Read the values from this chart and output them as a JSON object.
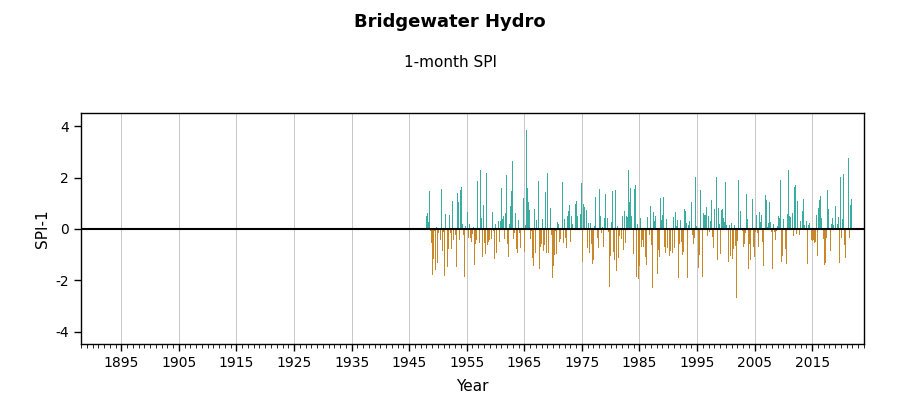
{
  "title": "Bridgewater Hydro",
  "subtitle": "1-month SPI",
  "ylabel": "SPI-1",
  "xlabel": "Year",
  "data_start_year": 1948,
  "data_end_year": 2021,
  "ylim": [
    -4.5,
    4.5
  ],
  "yticks": [
    -4,
    -2,
    0,
    2,
    4
  ],
  "xticks": [
    1895,
    1905,
    1915,
    1925,
    1935,
    1945,
    1955,
    1965,
    1975,
    1985,
    1995,
    2005,
    2015
  ],
  "xlim": [
    1888,
    2024
  ],
  "color_positive": "#3aada0",
  "color_negative": "#c8882a",
  "seed": 42,
  "background_color": "#ffffff",
  "grid_color": "#c8c8c8",
  "title_fontsize": 13,
  "subtitle_fontsize": 11,
  "axis_label_fontsize": 11,
  "tick_fontsize": 10,
  "tick_label_color": "#c8140a"
}
